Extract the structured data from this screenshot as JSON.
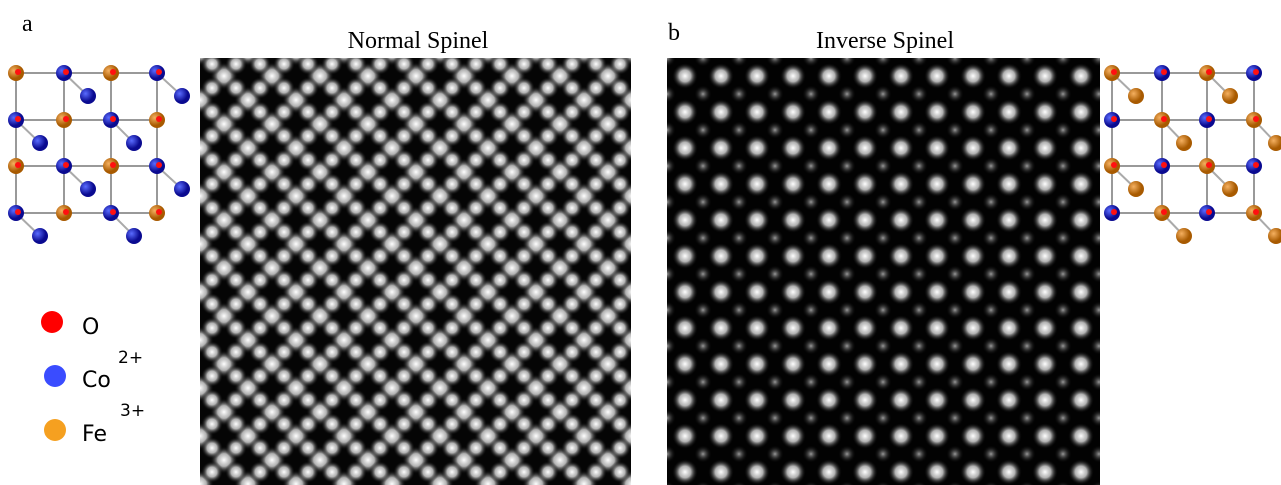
{
  "panels": [
    {
      "label": "a",
      "title": "Normal Spinel"
    },
    {
      "label": "b",
      "title": "Inverse Spinel"
    }
  ],
  "legend": [
    {
      "symbol": "O"
    },
    {
      "symbol": "Co",
      "charge": "2+"
    },
    {
      "symbol": "Fe",
      "charge": "3+"
    }
  ]
}
